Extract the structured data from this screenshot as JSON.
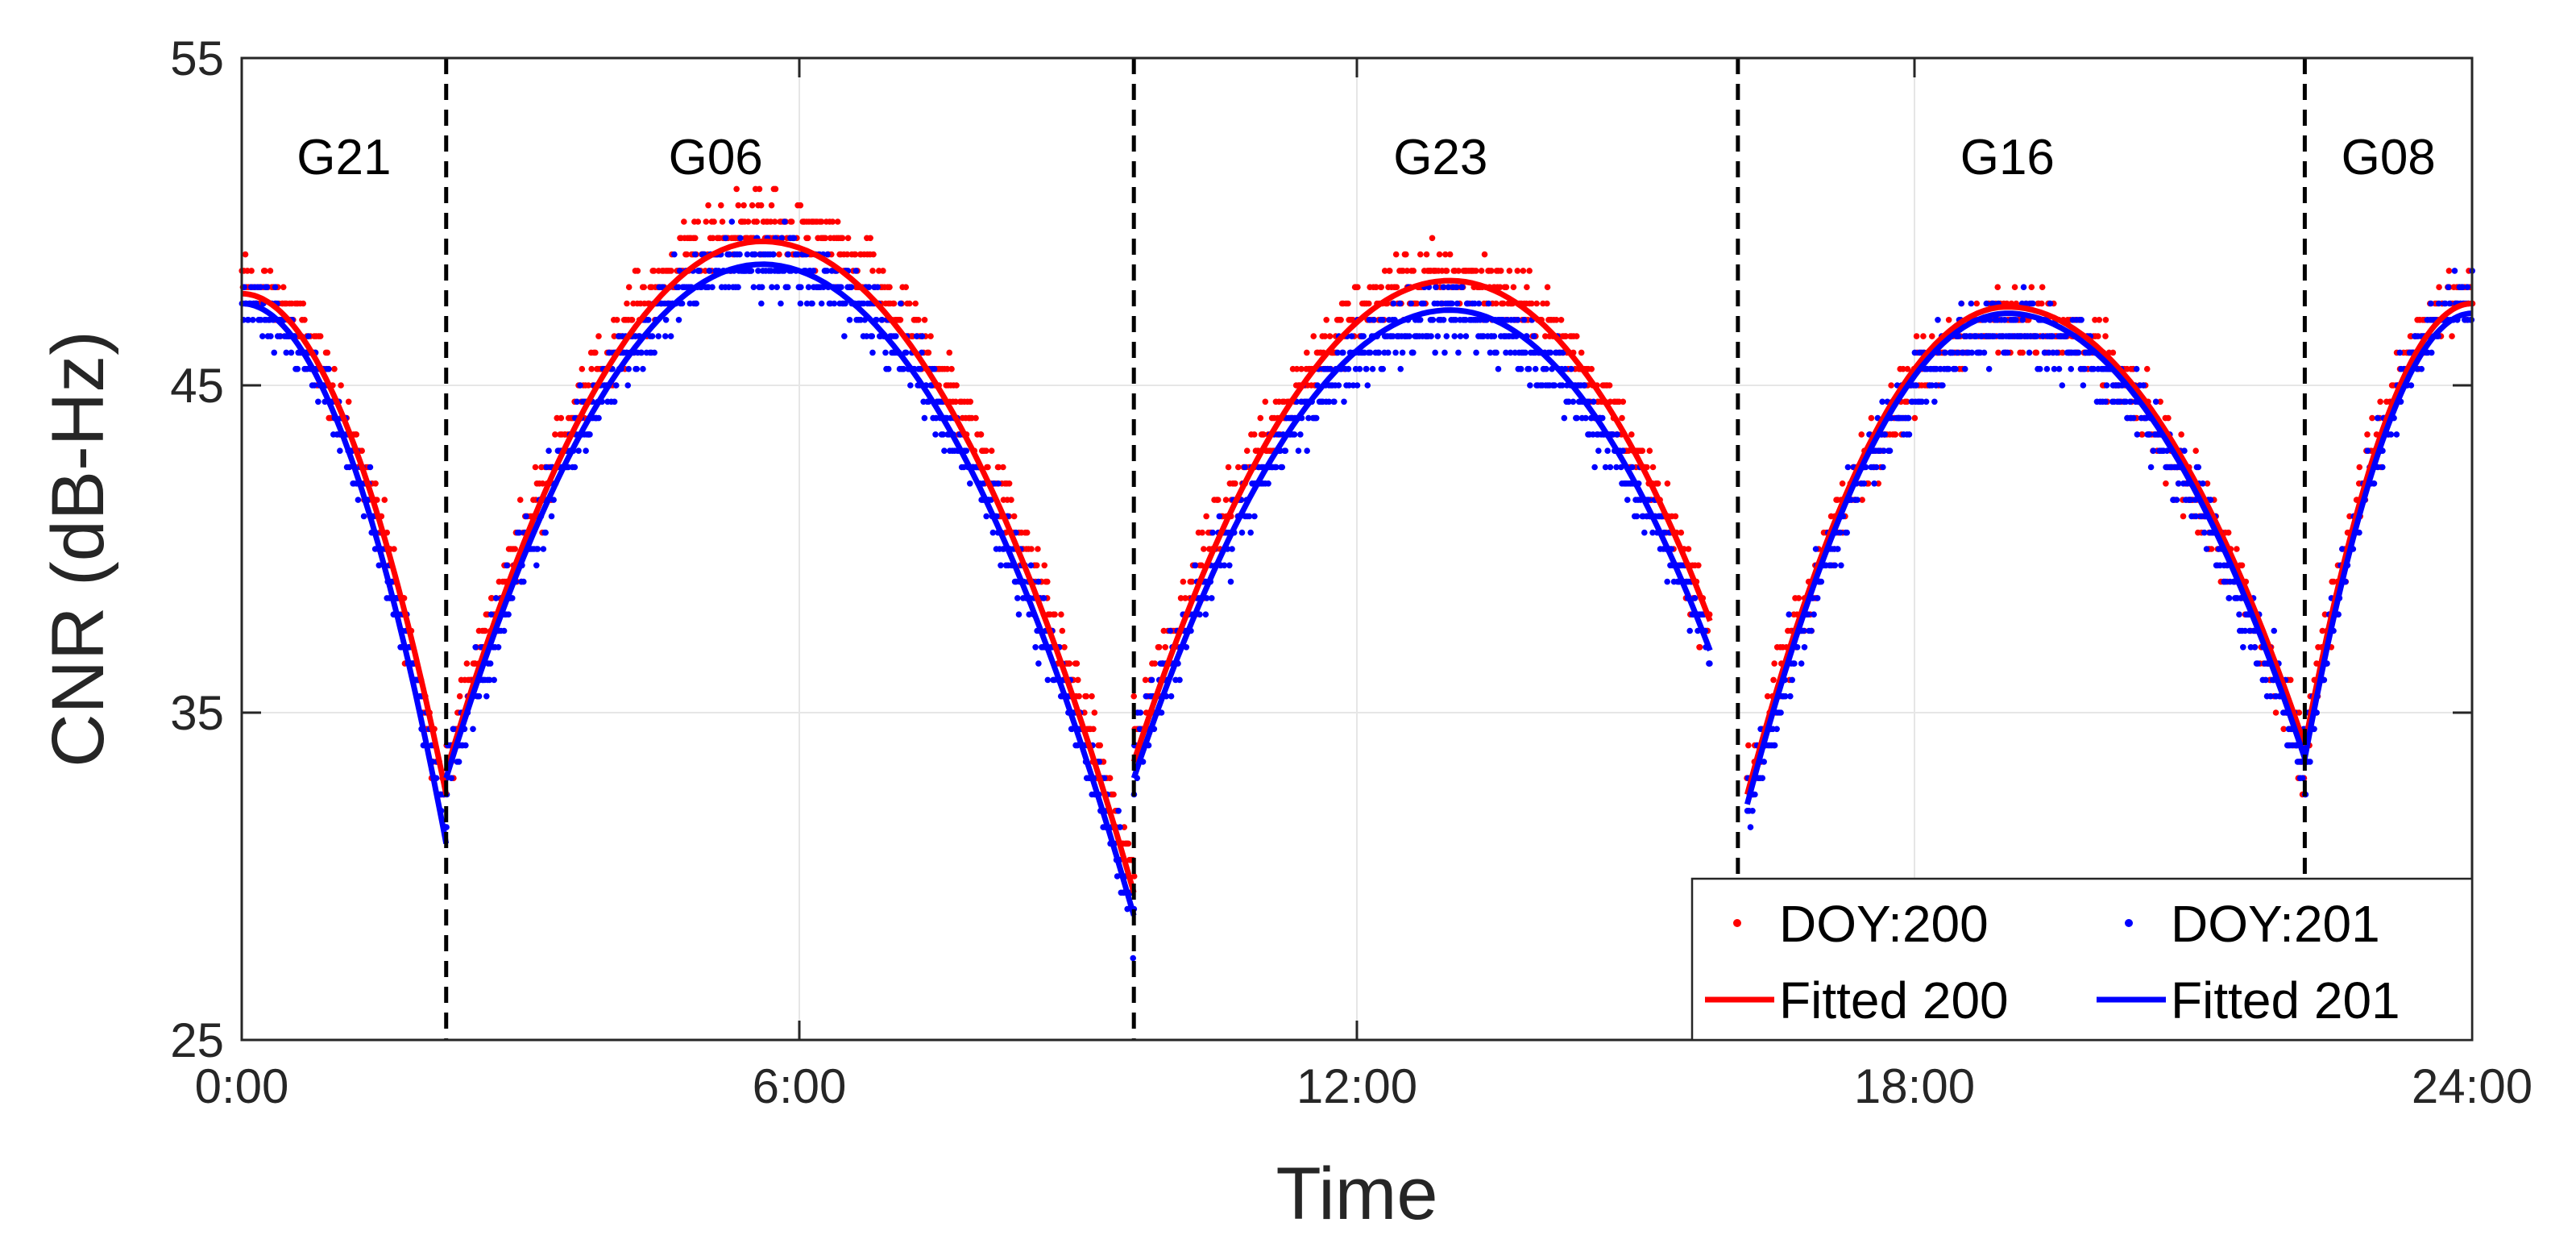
{
  "chart_data": {
    "type": "scatter",
    "title": "",
    "xlabel": "Time",
    "ylabel": "CNR (dB-Hz)",
    "xlim": [
      0,
      24
    ],
    "ylim": [
      25,
      55
    ],
    "grid": true,
    "xticks": [
      0,
      6,
      12,
      18,
      24
    ],
    "xtick_labels": [
      "0:00",
      "6:00",
      "12:00",
      "18:00",
      "24:00"
    ],
    "yticks": [
      25,
      35,
      45,
      55
    ],
    "ytick_labels": [
      "25",
      "35",
      "45",
      "55"
    ],
    "dividers_hours": [
      2.2,
      9.6,
      16.1,
      22.2
    ],
    "satellites": [
      {
        "name": "G21",
        "label_hour": 1.1,
        "label_cnr": 52.0
      },
      {
        "name": "G06",
        "label_hour": 5.1,
        "label_cnr": 52.0
      },
      {
        "name": "G23",
        "label_hour": 12.9,
        "label_cnr": 52.0
      },
      {
        "name": "G16",
        "label_hour": 19.0,
        "label_cnr": 52.0
      },
      {
        "name": "G08",
        "label_hour": 23.1,
        "label_cnr": 52.0
      }
    ],
    "series": [
      {
        "name": "DOY:200",
        "kind": "scatter",
        "color": "#ff0000",
        "arcs": [
          {
            "start": 0.0,
            "end": 2.2,
            "start_cnr": 48.0,
            "peak_hour": 0.0,
            "peak_cnr": 48.0,
            "end_cnr": 32.0,
            "noise": 0.8
          },
          {
            "start": 2.2,
            "end": 9.6,
            "start_cnr": 33.5,
            "peak_hour": 5.6,
            "peak_cnr": 49.8,
            "end_cnr": 30.0,
            "noise": 0.9
          },
          {
            "start": 9.6,
            "end": 15.8,
            "start_cnr": 34.0,
            "peak_hour": 13.0,
            "peak_cnr": 48.3,
            "end_cnr": 37.5,
            "noise": 0.9
          },
          {
            "start": 16.2,
            "end": 22.2,
            "start_cnr": 32.5,
            "peak_hour": 19.0,
            "peak_cnr": 47.0,
            "end_cnr": 33.5,
            "noise": 0.9
          },
          {
            "start": 22.2,
            "end": 24.0,
            "start_cnr": 34.0,
            "peak_hour": 24.0,
            "peak_cnr": 47.8,
            "end_cnr": 47.8,
            "noise": 0.8
          }
        ]
      },
      {
        "name": "DOY:201",
        "kind": "scatter",
        "color": "#0000ff",
        "arcs": [
          {
            "start": 0.0,
            "end": 2.2,
            "start_cnr": 47.5,
            "peak_hour": 0.0,
            "peak_cnr": 47.5,
            "end_cnr": 31.5,
            "noise": 0.8
          },
          {
            "start": 2.2,
            "end": 9.6,
            "start_cnr": 33.0,
            "peak_hour": 5.6,
            "peak_cnr": 48.8,
            "end_cnr": 29.0,
            "noise": 0.9
          },
          {
            "start": 9.6,
            "end": 15.8,
            "start_cnr": 33.5,
            "peak_hour": 13.0,
            "peak_cnr": 47.0,
            "end_cnr": 37.0,
            "noise": 0.9
          },
          {
            "start": 16.2,
            "end": 22.2,
            "start_cnr": 32.0,
            "peak_hour": 19.0,
            "peak_cnr": 46.8,
            "end_cnr": 33.5,
            "noise": 0.9
          },
          {
            "start": 22.2,
            "end": 24.0,
            "start_cnr": 33.5,
            "peak_hour": 24.0,
            "peak_cnr": 47.5,
            "end_cnr": 47.5,
            "noise": 0.8
          }
        ]
      },
      {
        "name": "Fitted 200",
        "kind": "line",
        "color": "#ff0000",
        "arcs": [
          {
            "start": 0.0,
            "end": 2.2,
            "start_cnr": 47.8,
            "peak_hour": 0.0,
            "peak_cnr": 47.8,
            "end_cnr": 32.5
          },
          {
            "start": 2.2,
            "end": 9.6,
            "start_cnr": 33.2,
            "peak_hour": 5.6,
            "peak_cnr": 49.4,
            "end_cnr": 29.5
          },
          {
            "start": 9.6,
            "end": 15.8,
            "start_cnr": 33.5,
            "peak_hour": 13.0,
            "peak_cnr": 48.2,
            "end_cnr": 37.8
          },
          {
            "start": 16.2,
            "end": 22.2,
            "start_cnr": 32.5,
            "peak_hour": 19.0,
            "peak_cnr": 47.4,
            "end_cnr": 34.0
          },
          {
            "start": 22.2,
            "end": 24.0,
            "start_cnr": 34.0,
            "peak_hour": 24.0,
            "peak_cnr": 47.5,
            "end_cnr": 47.5
          }
        ]
      },
      {
        "name": "Fitted 201",
        "kind": "line",
        "color": "#0000ff",
        "arcs": [
          {
            "start": 0.0,
            "end": 2.2,
            "start_cnr": 47.5,
            "peak_hour": 0.0,
            "peak_cnr": 47.5,
            "end_cnr": 31.0
          },
          {
            "start": 2.2,
            "end": 9.6,
            "start_cnr": 33.0,
            "peak_hour": 5.6,
            "peak_cnr": 48.7,
            "end_cnr": 28.8
          },
          {
            "start": 9.6,
            "end": 15.8,
            "start_cnr": 33.0,
            "peak_hour": 13.0,
            "peak_cnr": 47.3,
            "end_cnr": 36.9
          },
          {
            "start": 16.2,
            "end": 22.2,
            "start_cnr": 32.2,
            "peak_hour": 19.0,
            "peak_cnr": 47.2,
            "end_cnr": 33.6
          },
          {
            "start": 22.2,
            "end": 24.0,
            "start_cnr": 33.6,
            "peak_hour": 24.0,
            "peak_cnr": 47.2,
            "end_cnr": 47.2
          }
        ]
      }
    ],
    "legend": {
      "position": "bottom-right",
      "entries": [
        "DOY:200",
        "DOY:201",
        "Fitted 200",
        "Fitted 201"
      ]
    }
  }
}
